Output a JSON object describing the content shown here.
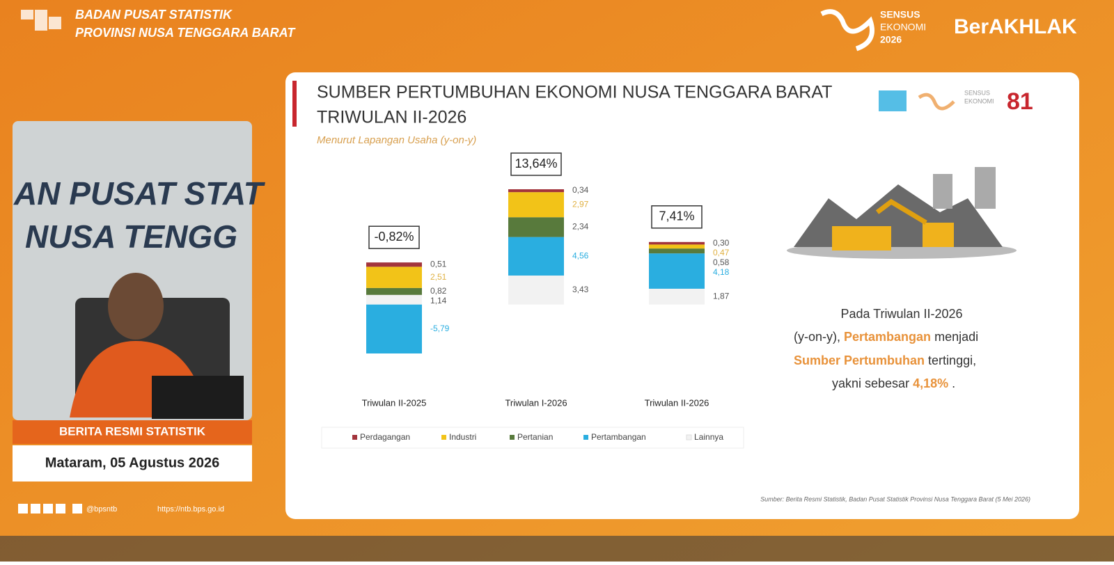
{
  "header": {
    "org": "BADAN PUSAT STATISTIK",
    "province": "PROVINSI NUSA TENGGARA BARAT",
    "census": [
      "SENSUS",
      "EKONOMI",
      "2026"
    ],
    "brand": "BerAKHLAK"
  },
  "video": {
    "backdrop": [
      "AN PUSAT STAT",
      "NUSA TENGG"
    ],
    "caption": "BERITA RESMI STATISTIK",
    "place_date": "Mataram, 05 Agustus 2026"
  },
  "footer": {
    "social": "@bpsntb",
    "url": "https://ntb.bps.go.id"
  },
  "slide": {
    "logo_text": [
      "SENSUS",
      "EKONOMI",
      "81"
    ],
    "note": [
      "Pada Triwulan II-2026",
      "(y-on-y),",
      "Pertambangan",
      "menjadi",
      "Sumber Pertumbuhan",
      "tertinggi,",
      "yakni sebesar",
      "4,18%",
      "."
    ],
    "source": "Sumber: Berita Resmi Statistik, Badan Pusat Statistik Provinsi Nusa Tenggara Barat (5 Mei 2026)"
  },
  "chart_data": {
    "type": "stacked-bar",
    "title": [
      "SUMBER PERTUMBUHAN EKONOMI NUSA TENGGARA BARAT",
      "TRIWULAN II-2026"
    ],
    "subtitle": "Menurut Lapangan Usaha (y-on-y)",
    "categories": [
      "Triwulan II-2025",
      "Triwulan I-2026",
      "Triwulan II-2026"
    ],
    "annotations": [
      "-0,82%",
      "13,64%",
      "7,41%"
    ],
    "series": [
      {
        "name": "Perdagangan",
        "color": "#a3343c",
        "values": [
          0.51,
          0.34,
          0.3
        ],
        "value_labels": [
          "0,51",
          "0,34",
          "0,30"
        ]
      },
      {
        "name": "Industri",
        "color": "#f2c318",
        "values": [
          2.51,
          2.97,
          0.47
        ],
        "value_labels": [
          "2,51",
          "2,97",
          "0,47"
        ]
      },
      {
        "name": "Pertanian",
        "color": "#587a3c",
        "values": [
          0.82,
          2.34,
          0.58
        ],
        "value_labels": [
          "0,82",
          "2,34",
          "0,58"
        ]
      },
      {
        "name": "Pertambangan",
        "color": "#2aaee0",
        "values": [
          -5.79,
          4.56,
          4.18
        ],
        "value_labels": [
          "-5,79",
          "4,56",
          "4,18"
        ]
      },
      {
        "name": "Lainnya",
        "color": "#f2f2f2",
        "values": [
          1.14,
          3.43,
          1.87
        ],
        "value_labels": [
          "1,14",
          "3,43",
          "1,87"
        ]
      }
    ]
  }
}
